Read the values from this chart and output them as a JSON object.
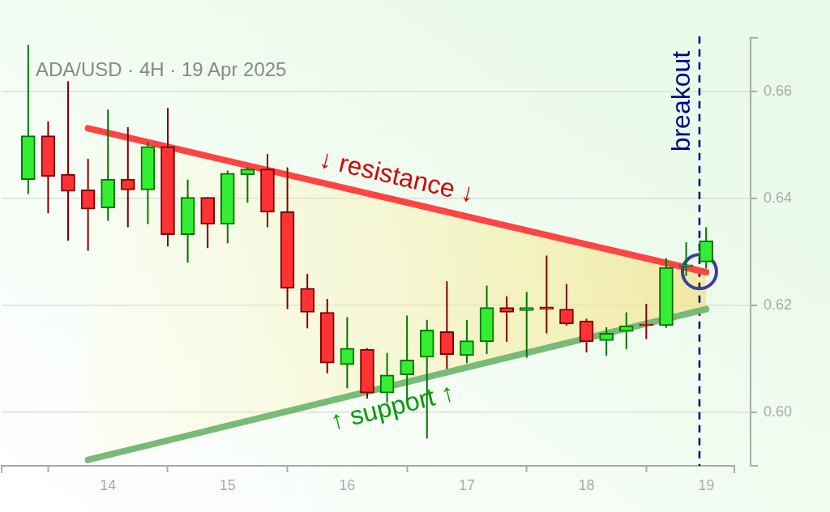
{
  "chart_data": {
    "type": "candlestick",
    "title": "ADA/USD · 4H · 19 Apr 2025",
    "x": [
      "2025-04-13T08:00",
      "2025-04-13T12:00",
      "2025-04-13T16:00",
      "2025-04-13T20:00",
      "2025-04-14T00:00",
      "2025-04-14T04:00",
      "2025-04-14T08:00",
      "2025-04-14T12:00",
      "2025-04-14T16:00",
      "2025-04-14T20:00",
      "2025-04-15T00:00",
      "2025-04-15T04:00",
      "2025-04-15T08:00",
      "2025-04-15T12:00",
      "2025-04-15T16:00",
      "2025-04-15T20:00",
      "2025-04-16T00:00",
      "2025-04-16T04:00",
      "2025-04-16T08:00",
      "2025-04-16T12:00",
      "2025-04-16T16:00",
      "2025-04-16T20:00",
      "2025-04-17T00:00",
      "2025-04-17T04:00",
      "2025-04-17T08:00",
      "2025-04-17T12:00",
      "2025-04-17T16:00",
      "2025-04-17T20:00",
      "2025-04-18T00:00",
      "2025-04-18T04:00",
      "2025-04-18T08:00",
      "2025-04-18T12:00",
      "2025-04-18T16:00",
      "2025-04-18T20:00",
      "2025-04-19T00:00"
    ],
    "ohlc": [
      [
        0.6435,
        0.6687,
        0.6408,
        0.6517
      ],
      [
        0.6517,
        0.6544,
        0.6372,
        0.6441
      ],
      [
        0.6445,
        0.6619,
        0.6321,
        0.6413
      ],
      [
        0.6416,
        0.6474,
        0.6302,
        0.638
      ],
      [
        0.6382,
        0.6566,
        0.6358,
        0.6436
      ],
      [
        0.6436,
        0.6533,
        0.6346,
        0.6416
      ],
      [
        0.6416,
        0.6505,
        0.6352,
        0.6497
      ],
      [
        0.6497,
        0.6569,
        0.631,
        0.6332
      ],
      [
        0.6332,
        0.6435,
        0.628,
        0.6402
      ],
      [
        0.6402,
        0.6402,
        0.6307,
        0.6352
      ],
      [
        0.6352,
        0.6452,
        0.6316,
        0.6447
      ],
      [
        0.6444,
        0.6458,
        0.6392,
        0.6455
      ],
      [
        0.6455,
        0.6483,
        0.6346,
        0.6374
      ],
      [
        0.6375,
        0.6458,
        0.6193,
        0.6232
      ],
      [
        0.6232,
        0.6259,
        0.6157,
        0.6187
      ],
      [
        0.6187,
        0.6212,
        0.6073,
        0.6092
      ],
      [
        0.6089,
        0.6178,
        0.6045,
        0.612
      ],
      [
        0.6118,
        0.612,
        0.6026,
        0.6036
      ],
      [
        0.6036,
        0.6111,
        0.6018,
        0.607
      ],
      [
        0.607,
        0.6181,
        0.6018,
        0.6098
      ],
      [
        0.6103,
        0.6173,
        0.5951,
        0.6154
      ],
      [
        0.6151,
        0.6245,
        0.6081,
        0.6108
      ],
      [
        0.6106,
        0.6173,
        0.6092,
        0.6134
      ],
      [
        0.6132,
        0.6237,
        0.6109,
        0.6196
      ],
      [
        0.6196,
        0.6217,
        0.6132,
        0.6187
      ],
      [
        0.619,
        0.6225,
        0.6102,
        0.6196
      ],
      [
        0.6197,
        0.6293,
        0.6148,
        0.6193
      ],
      [
        0.6193,
        0.624,
        0.6162,
        0.6165
      ],
      [
        0.6171,
        0.6175,
        0.6112,
        0.6132
      ],
      [
        0.6134,
        0.6159,
        0.6106,
        0.6148
      ],
      [
        0.6151,
        0.6187,
        0.6118,
        0.6162
      ],
      [
        0.6165,
        0.6203,
        0.6137,
        0.6162
      ],
      [
        0.6162,
        0.6288,
        0.6158,
        0.6271
      ],
      [
        0.6273,
        0.6318,
        0.6255,
        0.6276
      ],
      [
        0.6281,
        0.6346,
        0.6269,
        0.6321
      ]
    ],
    "colors": [
      "#007700",
      "#800000",
      "#800000",
      "#800000",
      "#007700",
      "#800000",
      "#007700",
      "#800000",
      "#007700",
      "#800000",
      "#007700",
      "#007700",
      "#800000",
      "#800000",
      "#800000",
      "#800000",
      "#007700",
      "#800000",
      "#007700",
      "#007700",
      "#007700",
      "#800000",
      "#007700",
      "#007700",
      "#800000",
      "#007700",
      "#800000",
      "#800000",
      "#800000",
      "#007700",
      "#007700",
      "#800000",
      "#007700",
      "#007700",
      "#007700"
    ],
    "series": [
      {
        "type": "line",
        "x": [
          "2025-04-13T20:00",
          "2025-04-19T00:00"
        ],
        "values": [
          0.6531,
          0.6262
        ],
        "color": "#ff4444",
        "lower": [
          0.5911,
          0.6193
        ],
        "upper": [
          0.6531,
          0.6262
        ]
      },
      {
        "type": "line",
        "x": [
          "2025-04-13T20:00",
          "2025-04-19T00:00"
        ],
        "values": [
          0.5911,
          0.6193
        ],
        "color": "#77bb77"
      },
      {
        "type": "scatter",
        "x": [
          "2025-04-18T22:40"
        ],
        "values": [
          0.6263
        ],
        "color": "#3b3f9c",
        "marker": "circle"
      }
    ],
    "xlim": [
      "2025-04-13T02:40",
      "2025-04-19T05:40"
    ],
    "xticks": [
      {
        "value": "2025-04-14",
        "label": "14"
      },
      {
        "value": "2025-04-15",
        "label": "15"
      },
      {
        "value": "2025-04-16",
        "label": "16"
      },
      {
        "value": "2025-04-17",
        "label": "17"
      },
      {
        "value": "2025-04-18",
        "label": "18"
      },
      {
        "value": "2025-04-19",
        "label": "19"
      }
    ],
    "ylim": [
      0.59,
      0.67
    ],
    "yticks": [
      {
        "value": 0.6,
        "label": "0.60"
      },
      0.62,
      0.64,
      0.66
    ],
    "grid": "y",
    "ref_lines": [
      {
        "axis": "x",
        "value": "2025-04-18T22:40",
        "label": "breakout",
        "color": "#00008b",
        "line_style": "dashed"
      }
    ],
    "annotations": [
      {
        "text": "↓ resistance ↓",
        "x": "2025-04-16T08:55",
        "y": 0.6399
      },
      {
        "text": "↑ support ↑",
        "x": "2025-04-16T08:05",
        "y": 0.6048
      }
    ]
  }
}
